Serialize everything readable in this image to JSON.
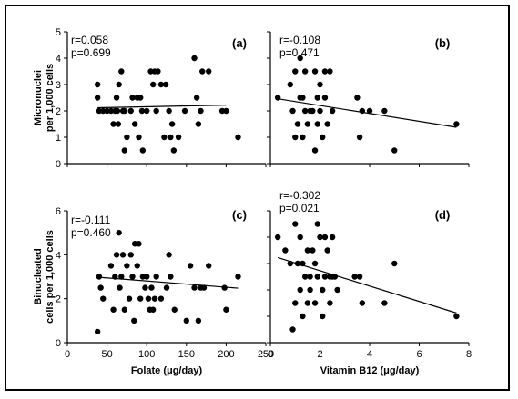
{
  "chart_data": [
    {
      "type": "scatter",
      "panel_label": "(a)",
      "stats": [
        "r=0.058",
        "p=0.699"
      ],
      "xlim": [
        0,
        250
      ],
      "ylim": [
        0,
        5
      ],
      "yticks": [
        "0",
        "1",
        "2",
        "3",
        "4",
        "5"
      ],
      "ylabel": [
        "Micronuclei",
        "per 1,000 cells"
      ],
      "points": [
        [
          38,
          2.5
        ],
        [
          38,
          3.0
        ],
        [
          40,
          2.0
        ],
        [
          45,
          2.0
        ],
        [
          50,
          2.0
        ],
        [
          55,
          2.0
        ],
        [
          58,
          1.5
        ],
        [
          60,
          2.0
        ],
        [
          62,
          2.5
        ],
        [
          63,
          2.0
        ],
        [
          64,
          1.5
        ],
        [
          65,
          3.0
        ],
        [
          68,
          3.5
        ],
        [
          70,
          2.0
        ],
        [
          72,
          2.0
        ],
        [
          72,
          0.5
        ],
        [
          75,
          1.0
        ],
        [
          80,
          2.0
        ],
        [
          82,
          2.5
        ],
        [
          85,
          1.5
        ],
        [
          88,
          2.5
        ],
        [
          90,
          1.0
        ],
        [
          92,
          2.5
        ],
        [
          94,
          2.0
        ],
        [
          95,
          0.5
        ],
        [
          100,
          2.0
        ],
        [
          105,
          3.5
        ],
        [
          108,
          3.0
        ],
        [
          110,
          3.5
        ],
        [
          112,
          2.0
        ],
        [
          114,
          3.5
        ],
        [
          118,
          3.0
        ],
        [
          122,
          1.0
        ],
        [
          124,
          3.0
        ],
        [
          128,
          2.0
        ],
        [
          130,
          1.0
        ],
        [
          132,
          1.5
        ],
        [
          134,
          0.5
        ],
        [
          140,
          1.0
        ],
        [
          148,
          2.0
        ],
        [
          160,
          4.0
        ],
        [
          163,
          2.5
        ],
        [
          165,
          1.5
        ],
        [
          168,
          2.0
        ],
        [
          170,
          3.5
        ],
        [
          178,
          3.5
        ],
        [
          195,
          2.0
        ],
        [
          200,
          2.0
        ],
        [
          215,
          1.0
        ]
      ],
      "fit": [
        [
          38,
          2.12
        ],
        [
          200,
          2.22
        ]
      ]
    },
    {
      "type": "scatter",
      "panel_label": "(b)",
      "stats": [
        "r=-0.108",
        "p=0.471"
      ],
      "xlim": [
        0,
        8
      ],
      "ylim": [
        0,
        5
      ],
      "points": [
        [
          0.3,
          2.5
        ],
        [
          0.8,
          3.0
        ],
        [
          0.9,
          2.0
        ],
        [
          1.0,
          3.5
        ],
        [
          1.0,
          1.0
        ],
        [
          1.1,
          1.5
        ],
        [
          1.2,
          2.5
        ],
        [
          1.2,
          4.0
        ],
        [
          1.3,
          2.5
        ],
        [
          1.3,
          1.0
        ],
        [
          1.4,
          3.5
        ],
        [
          1.4,
          2.0
        ],
        [
          1.5,
          1.5
        ],
        [
          1.6,
          2.0
        ],
        [
          1.7,
          2.0
        ],
        [
          1.8,
          3.5
        ],
        [
          1.8,
          0.5
        ],
        [
          1.9,
          2.5
        ],
        [
          1.9,
          1.5
        ],
        [
          2.0,
          3.0
        ],
        [
          2.0,
          2.0
        ],
        [
          2.1,
          1.0
        ],
        [
          2.2,
          3.5
        ],
        [
          2.2,
          2.5
        ],
        [
          2.3,
          1.5
        ],
        [
          2.4,
          3.5
        ],
        [
          2.5,
          2.0
        ],
        [
          3.5,
          2.5
        ],
        [
          3.6,
          1.0
        ],
        [
          3.7,
          2.0
        ],
        [
          4.0,
          2.0
        ],
        [
          4.6,
          2.0
        ],
        [
          5.0,
          0.5
        ],
        [
          7.5,
          1.5
        ]
      ],
      "fit": [
        [
          0.3,
          2.46
        ],
        [
          7.5,
          1.38
        ]
      ]
    },
    {
      "type": "scatter",
      "panel_label": "(c)",
      "stats": [
        "r=-0.111",
        "p=0.460"
      ],
      "xlim": [
        0,
        250
      ],
      "ylim": [
        0,
        6
      ],
      "yticks": [
        "0",
        "2",
        "4",
        "6"
      ],
      "xticks": [
        "0",
        "50",
        "100",
        "150",
        "200",
        "250"
      ],
      "xlabel": "Folate (μg/day)",
      "ylabel": [
        "Binucleated",
        "cells per 1,000 cells"
      ],
      "points": [
        [
          38,
          0.5
        ],
        [
          40,
          3.0
        ],
        [
          42,
          2.5
        ],
        [
          45,
          2.0
        ],
        [
          55,
          3.5
        ],
        [
          58,
          1.5
        ],
        [
          60,
          3.0
        ],
        [
          62,
          4.0
        ],
        [
          65,
          5.0
        ],
        [
          66,
          2.5
        ],
        [
          68,
          3.0
        ],
        [
          70,
          4.0
        ],
        [
          72,
          1.5
        ],
        [
          75,
          3.5
        ],
        [
          78,
          2.0
        ],
        [
          80,
          4.0
        ],
        [
          82,
          3.0
        ],
        [
          84,
          1.0
        ],
        [
          85,
          4.5
        ],
        [
          88,
          3.5
        ],
        [
          90,
          4.5
        ],
        [
          92,
          2.0
        ],
        [
          95,
          3.0
        ],
        [
          98,
          2.5
        ],
        [
          100,
          3.0
        ],
        [
          102,
          2.0
        ],
        [
          104,
          1.5
        ],
        [
          106,
          2.5
        ],
        [
          108,
          1.5
        ],
        [
          110,
          2.0
        ],
        [
          112,
          3.0
        ],
        [
          118,
          2.0
        ],
        [
          125,
          2.5
        ],
        [
          128,
          4.0
        ],
        [
          130,
          3.0
        ],
        [
          135,
          1.5
        ],
        [
          150,
          1.0
        ],
        [
          155,
          3.5
        ],
        [
          160,
          2.5
        ],
        [
          165,
          1.0
        ],
        [
          168,
          2.5
        ],
        [
          172,
          2.5
        ],
        [
          178,
          3.5
        ],
        [
          198,
          2.5
        ],
        [
          200,
          1.5
        ],
        [
          215,
          3.0
        ]
      ],
      "fit": [
        [
          38,
          2.98
        ],
        [
          215,
          2.48
        ]
      ]
    },
    {
      "type": "scatter",
      "panel_label": "(d)",
      "stats": [
        "r=-0.302",
        "p=0.021"
      ],
      "xlim": [
        0,
        8
      ],
      "ylim": [
        0,
        6
      ],
      "xticks": [
        "0",
        "2",
        "4",
        "6",
        "8"
      ],
      "xlabel": "Vitamin B12 (μg/day)",
      "points": [
        [
          0.3,
          4.8
        ],
        [
          0.6,
          4.2
        ],
        [
          0.8,
          3.6
        ],
        [
          0.9,
          0.6
        ],
        [
          1.0,
          5.4
        ],
        [
          1.0,
          1.8
        ],
        [
          1.1,
          3.6
        ],
        [
          1.2,
          2.4
        ],
        [
          1.2,
          4.8
        ],
        [
          1.3,
          1.2
        ],
        [
          1.3,
          3.6
        ],
        [
          1.4,
          3.0
        ],
        [
          1.5,
          4.2
        ],
        [
          1.5,
          1.8
        ],
        [
          1.6,
          3.0
        ],
        [
          1.6,
          2.4
        ],
        [
          1.7,
          4.2
        ],
        [
          1.8,
          3.6
        ],
        [
          1.8,
          1.8
        ],
        [
          1.9,
          5.4
        ],
        [
          1.9,
          3.0
        ],
        [
          2.0,
          4.8
        ],
        [
          2.1,
          2.4
        ],
        [
          2.1,
          1.2
        ],
        [
          2.2,
          4.8
        ],
        [
          2.2,
          3.0
        ],
        [
          2.3,
          4.2
        ],
        [
          2.4,
          3.0
        ],
        [
          2.4,
          1.8
        ],
        [
          2.5,
          4.8
        ],
        [
          2.5,
          3.0
        ],
        [
          2.6,
          3.0
        ],
        [
          2.7,
          2.4
        ],
        [
          3.4,
          3.0
        ],
        [
          3.6,
          3.0
        ],
        [
          3.7,
          1.8
        ],
        [
          4.6,
          1.8
        ],
        [
          5.0,
          3.6
        ],
        [
          7.5,
          1.2
        ]
      ],
      "fit": [
        [
          0.3,
          3.87
        ],
        [
          7.5,
          1.35
        ]
      ]
    }
  ]
}
